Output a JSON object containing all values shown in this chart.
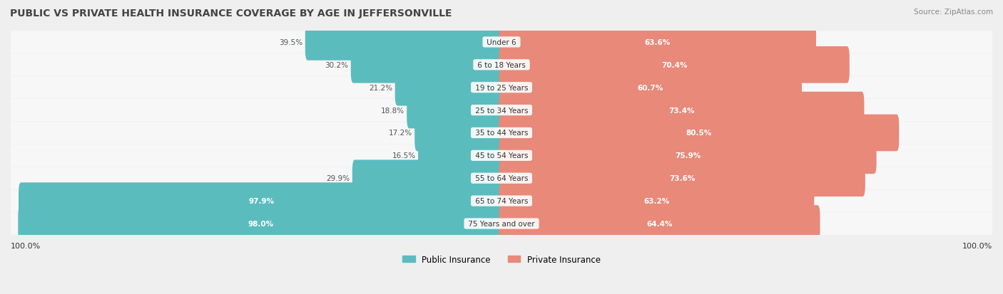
{
  "title": "PUBLIC VS PRIVATE HEALTH INSURANCE COVERAGE BY AGE IN JEFFERSONVILLE",
  "source": "Source: ZipAtlas.com",
  "categories": [
    "Under 6",
    "6 to 18 Years",
    "19 to 25 Years",
    "25 to 34 Years",
    "35 to 44 Years",
    "45 to 54 Years",
    "55 to 64 Years",
    "65 to 74 Years",
    "75 Years and over"
  ],
  "public_values": [
    39.5,
    30.2,
    21.2,
    18.8,
    17.2,
    16.5,
    29.9,
    97.9,
    98.0
  ],
  "private_values": [
    63.6,
    70.4,
    60.7,
    73.4,
    80.5,
    75.9,
    73.6,
    63.2,
    64.4
  ],
  "public_color": "#5bbcbe",
  "private_color": "#e8897a",
  "bg_color": "#efefef",
  "row_bg_color": "#f7f7f7",
  "title_color": "#444444",
  "label_color": "#333333",
  "value_color_dark": "#555555",
  "max_value": 100.0,
  "legend_public": "Public Insurance",
  "legend_private": "Private Insurance"
}
